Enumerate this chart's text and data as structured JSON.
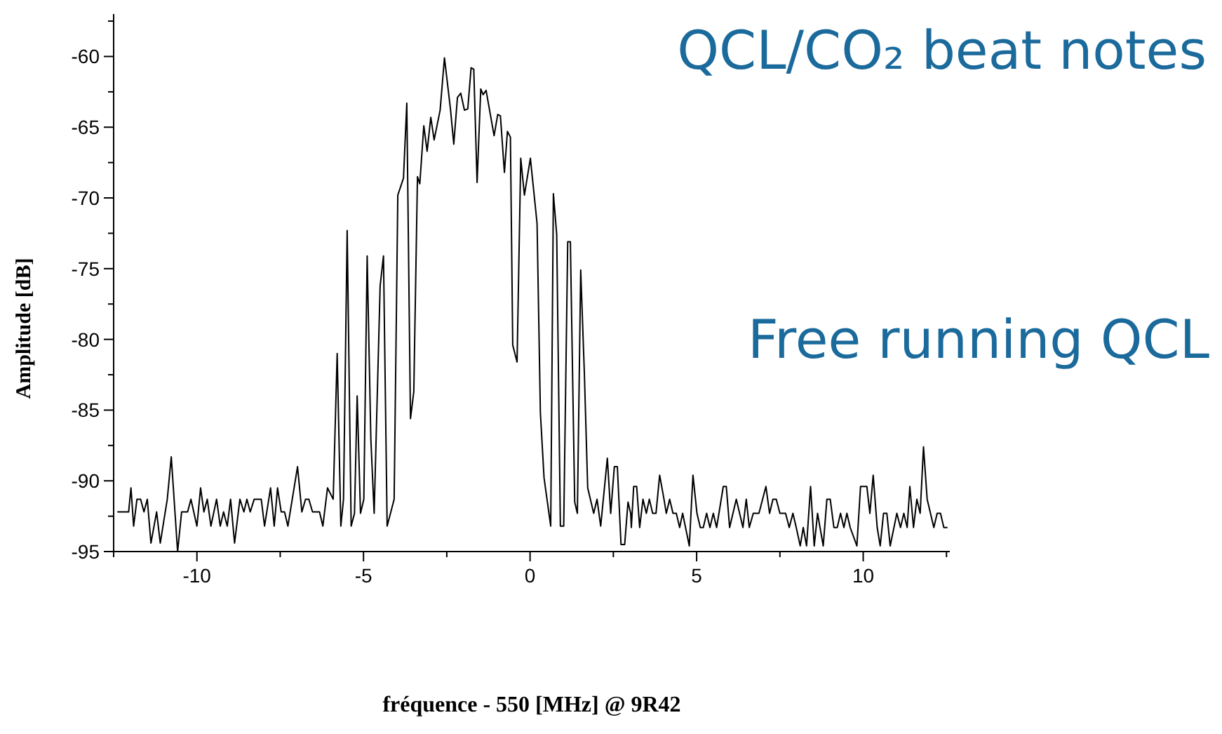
{
  "chart_data": {
    "type": "line",
    "title": "QCL/CO₂ beat notes",
    "annotations": [
      "Free running QCL"
    ],
    "xlabel": "fréquence - 550 [MHz] @ 9R42",
    "ylabel": "Amplitude [dB]",
    "xlim": [
      -12.5,
      12.6
    ],
    "xticks": [
      {
        "value": -12.5,
        "label": null
      },
      -10,
      {
        "value": -7.5,
        "label": null
      },
      -5,
      {
        "value": -2.5,
        "label": null
      },
      0,
      {
        "value": 2.5,
        "label": null
      },
      5,
      {
        "value": 7.5,
        "label": null
      },
      10,
      {
        "value": 12.5,
        "label": null
      }
    ],
    "ylim": [
      -95,
      -57
    ],
    "yticks": [
      -95,
      {
        "value": -92.5,
        "label": null
      },
      -90,
      {
        "value": -87.5,
        "label": null
      },
      -85,
      {
        "value": -82.5,
        "label": null
      },
      -80,
      {
        "value": -77.5,
        "label": null
      },
      -75,
      {
        "value": -72.5,
        "label": null
      },
      -70,
      {
        "value": -67.5,
        "label": null
      },
      -65,
      {
        "value": -62.5,
        "label": null
      },
      -60,
      {
        "value": -57.5,
        "label": null
      }
    ],
    "grid": false,
    "legend": false,
    "marker": "none",
    "line_style": "solid",
    "series": [
      {
        "color": "#000000",
        "x": [
          -12.39,
          -12.05,
          -11.98,
          -11.9,
          -11.8,
          -11.69,
          -11.59,
          -11.49,
          -11.38,
          -11.21,
          -11.1,
          -10.89,
          -10.77,
          -10.58,
          -10.46,
          -10.28,
          -10.18,
          -10,
          -9.89,
          -9.79,
          -9.69,
          -9.58,
          -9.41,
          -9.3,
          -9.2,
          -9.09,
          -8.99,
          -8.87,
          -8.71,
          -8.59,
          -8.5,
          -8.4,
          -8.28,
          -8.07,
          -7.97,
          -7.79,
          -7.68,
          -7.58,
          -7.47,
          -7.37,
          -7.27,
          -6.98,
          -6.85,
          -6.74,
          -6.64,
          -6.53,
          -6.32,
          -6.22,
          -6.08,
          -5.91,
          -5.79,
          -5.68,
          -5.6,
          -5.49,
          -5.37,
          -5.27,
          -5.19,
          -5.09,
          -4.99,
          -4.89,
          -4.78,
          -4.68,
          -4.5,
          -4.4,
          -4.29,
          -4.08,
          -3.97,
          -3.8,
          -3.7,
          -3.59,
          -3.49,
          -3.38,
          -3.31,
          -3.19,
          -3.09,
          -2.98,
          -2.88,
          -2.7,
          -2.57,
          -2.39,
          -2.29,
          -2.18,
          -2.08,
          -1.97,
          -1.87,
          -1.77,
          -1.69,
          -1.59,
          -1.48,
          -1.41,
          -1.32,
          -1.08,
          -0.97,
          -0.89,
          -0.77,
          -0.68,
          -0.59,
          -0.52,
          -0.39,
          -0.28,
          -0.17,
          0.01,
          0.21,
          0.31,
          0.42,
          0.62,
          0.7,
          0.8,
          0.91,
          1.01,
          1.13,
          1.21,
          1.34,
          1.42,
          1.52,
          1.63,
          1.73,
          1.91,
          2.01,
          2.12,
          2.32,
          2.42,
          2.53,
          2.62,
          2.73,
          2.84,
          2.94,
          3.02,
          3.04,
          3.11,
          3.2,
          3.29,
          3.39,
          3.49,
          3.58,
          3.68,
          3.78,
          3.89,
          4.02,
          4.09,
          4.19,
          4.29,
          4.39,
          4.49,
          4.58,
          4.78,
          4.89,
          5.01,
          5.11,
          5.2,
          5.3,
          5.4,
          5.5,
          5.6,
          5.8,
          5.89,
          5.99,
          6.19,
          6.29,
          6.39,
          6.49,
          6.58,
          6.7,
          6.87,
          7.08,
          7.19,
          7.29,
          7.39,
          7.5,
          7.67,
          7.78,
          7.89,
          7.99,
          8.11,
          8.2,
          8.3,
          8.42,
          8.53,
          8.63,
          8.8,
          8.91,
          9.01,
          9.12,
          9.22,
          9.32,
          9.42,
          9.51,
          9.61,
          9.81,
          9.92,
          10.11,
          10.2,
          10.3,
          10.42,
          10.51,
          10.61,
          10.71,
          10.81,
          11.01,
          11.12,
          11.22,
          11.32,
          11.4,
          11.51,
          11.61,
          11.71,
          11.81,
          11.92,
          12.12,
          12.22,
          12.32,
          12.42,
          12.53
        ],
        "values": [
          -92.2,
          -92.2,
          -90.5,
          -93.2,
          -91.3,
          -91.3,
          -92.2,
          -91.3,
          -94.4,
          -92.2,
          -94.4,
          -91.3,
          -88.3,
          -95,
          -92.2,
          -92.2,
          -91.3,
          -93.2,
          -90.5,
          -92.2,
          -91.3,
          -93.2,
          -91.3,
          -93.2,
          -92.2,
          -93.2,
          -91.3,
          -94.4,
          -91.3,
          -92.2,
          -91.3,
          -92.2,
          -91.3,
          -91.3,
          -93.2,
          -90.5,
          -93.2,
          -90.5,
          -92.2,
          -92.2,
          -93.2,
          -89,
          -92.2,
          -91.3,
          -91.3,
          -92.2,
          -92.2,
          -93.2,
          -90.5,
          -91.3,
          -81,
          -93.2,
          -91.3,
          -72.3,
          -93.2,
          -92.3,
          -84,
          -92.3,
          -91.3,
          -74.1,
          -87,
          -92.3,
          -76.2,
          -74.1,
          -93.2,
          -91.3,
          -69.8,
          -68.6,
          -63.3,
          -85.6,
          -83.7,
          -68.5,
          -69,
          -64.9,
          -66.7,
          -64.3,
          -65.9,
          -63.8,
          -60.1,
          -63.7,
          -66.2,
          -62.9,
          -62.6,
          -63.8,
          -63.7,
          -60.8,
          -60.9,
          -68.9,
          -62.3,
          -62.7,
          -62.4,
          -65.6,
          -64.1,
          -64.2,
          -68.2,
          -65.3,
          -65.7,
          -80.4,
          -81.6,
          -67.2,
          -69.8,
          -67.2,
          -71.8,
          -85.2,
          -89.8,
          -93.2,
          -69.7,
          -72.6,
          -93.2,
          -93.2,
          -73.1,
          -73.1,
          -91.5,
          -92.3,
          -75.1,
          -82.4,
          -90.5,
          -92.3,
          -91.3,
          -93.2,
          -88.4,
          -92.3,
          -89,
          -89,
          -94.5,
          -94.5,
          -91.5,
          -92.3,
          -93.3,
          -90.4,
          -90.4,
          -93.3,
          -91.3,
          -92.3,
          -91.3,
          -92.3,
          -92.3,
          -89.6,
          -91.3,
          -92.3,
          -91.3,
          -92.3,
          -92.3,
          -93.3,
          -92.3,
          -94.6,
          -89.6,
          -92.3,
          -93.3,
          -93.3,
          -92.3,
          -93.3,
          -92.3,
          -93.3,
          -90.4,
          -90.4,
          -93.3,
          -91.3,
          -92.3,
          -93.3,
          -91.3,
          -93.3,
          -92.3,
          -92.3,
          -90.4,
          -92.3,
          -91.3,
          -91.3,
          -92.3,
          -92.3,
          -93.3,
          -92.3,
          -93.3,
          -94.6,
          -93.3,
          -94.6,
          -90.4,
          -94.6,
          -92.3,
          -94.6,
          -91.3,
          -91.3,
          -93.3,
          -93.3,
          -92.3,
          -93.3,
          -92.3,
          -93.3,
          -94.6,
          -90.4,
          -90.4,
          -92.3,
          -89.6,
          -93.3,
          -94.6,
          -92.3,
          -92.3,
          -94.6,
          -92.3,
          -93.3,
          -92.3,
          -93.3,
          -90.4,
          -93.3,
          -91.3,
          -92.3,
          -87.6,
          -91.3,
          -93.3,
          -92.3,
          -92.3,
          -93.3,
          -93.3
        ]
      }
    ]
  }
}
